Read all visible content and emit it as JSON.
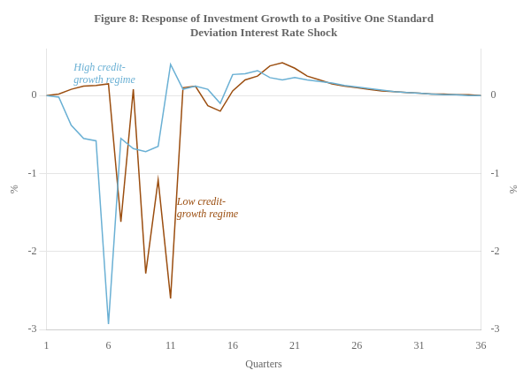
{
  "chart_data": {
    "type": "line",
    "title": [
      "Figure 8: Response of Investment Growth to a Positive One Standard",
      "Deviation Interest Rate Shock"
    ],
    "xlabel": "Quarters",
    "ylabel": "%",
    "y2label": "%",
    "x": [
      1,
      2,
      3,
      4,
      5,
      6,
      7,
      8,
      9,
      10,
      11,
      12,
      13,
      14,
      15,
      16,
      17,
      18,
      19,
      20,
      21,
      22,
      23,
      24,
      25,
      26,
      27,
      28,
      29,
      30,
      31,
      32,
      33,
      34,
      35,
      36
    ],
    "series": [
      {
        "color": "#6ab0d4",
        "values": [
          0.0,
          -0.02,
          -0.38,
          -0.55,
          -0.58,
          -2.93,
          -0.55,
          -0.68,
          -0.72,
          -0.65,
          0.4,
          0.08,
          0.12,
          0.08,
          -0.1,
          0.27,
          0.28,
          0.32,
          0.23,
          0.2,
          0.23,
          0.2,
          0.18,
          0.16,
          0.13,
          0.11,
          0.09,
          0.07,
          0.05,
          0.04,
          0.03,
          0.02,
          0.01,
          0.01,
          0.0,
          0.0
        ]
      },
      {
        "color": "#9B4E10",
        "values": [
          0.0,
          0.02,
          0.08,
          0.12,
          0.13,
          0.15,
          -1.62,
          0.08,
          -2.28,
          -1.08,
          -2.6,
          0.1,
          0.12,
          -0.13,
          -0.2,
          0.06,
          0.2,
          0.25,
          0.38,
          0.42,
          0.35,
          0.25,
          0.2,
          0.15,
          0.12,
          0.1,
          0.08,
          0.06,
          0.05,
          0.04,
          0.03,
          0.02,
          0.02,
          0.01,
          0.01,
          0.0
        ]
      }
    ],
    "xlim": [
      1,
      36
    ],
    "xticks": [
      1,
      6,
      11,
      16,
      21,
      26,
      31,
      36
    ],
    "ylim": [
      -3,
      0.6
    ],
    "yticks": [
      -3,
      -2,
      -1,
      0
    ],
    "y2lim": [
      -3,
      0.6
    ],
    "y2ticks": [
      -3,
      -2,
      -1,
      0
    ],
    "grid": "y",
    "annotations": [
      {
        "text": "High credit-\ngrowth regime",
        "x": 3.2,
        "y": 0.42,
        "color": "#6ab0d4"
      },
      {
        "text": "Low credit-\ngrowth regime",
        "x": 11.5,
        "y": -1.3,
        "color": "#9B4E10"
      }
    ]
  }
}
